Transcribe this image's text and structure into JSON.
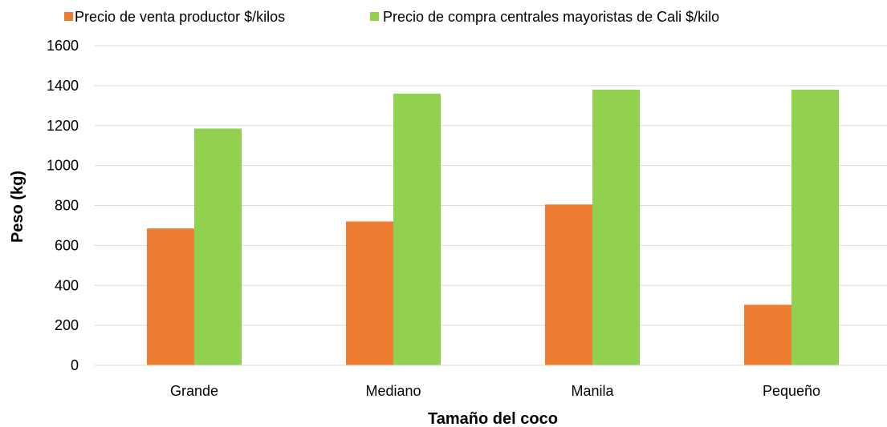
{
  "chart_data": {
    "type": "bar",
    "categories": [
      "Grande",
      "Mediano",
      "Manila",
      "Pequeño"
    ],
    "series": [
      {
        "name": "Precio de venta productor $/kilos",
        "color": "#ED7D31",
        "values": [
          685,
          720,
          805,
          303
        ]
      },
      {
        "name": "Precio de compra centrales mayoristas de Cali $/kilo",
        "color": "#92D050",
        "values": [
          1185,
          1360,
          1380,
          1380
        ]
      }
    ],
    "title": "",
    "xlabel": "Tamaño del coco",
    "ylabel": "Peso (kg)",
    "ylim": [
      0,
      1600
    ],
    "yticks": [
      0,
      200,
      400,
      600,
      800,
      1000,
      1200,
      1400,
      1600
    ],
    "grid": true,
    "legend_position": "top"
  }
}
